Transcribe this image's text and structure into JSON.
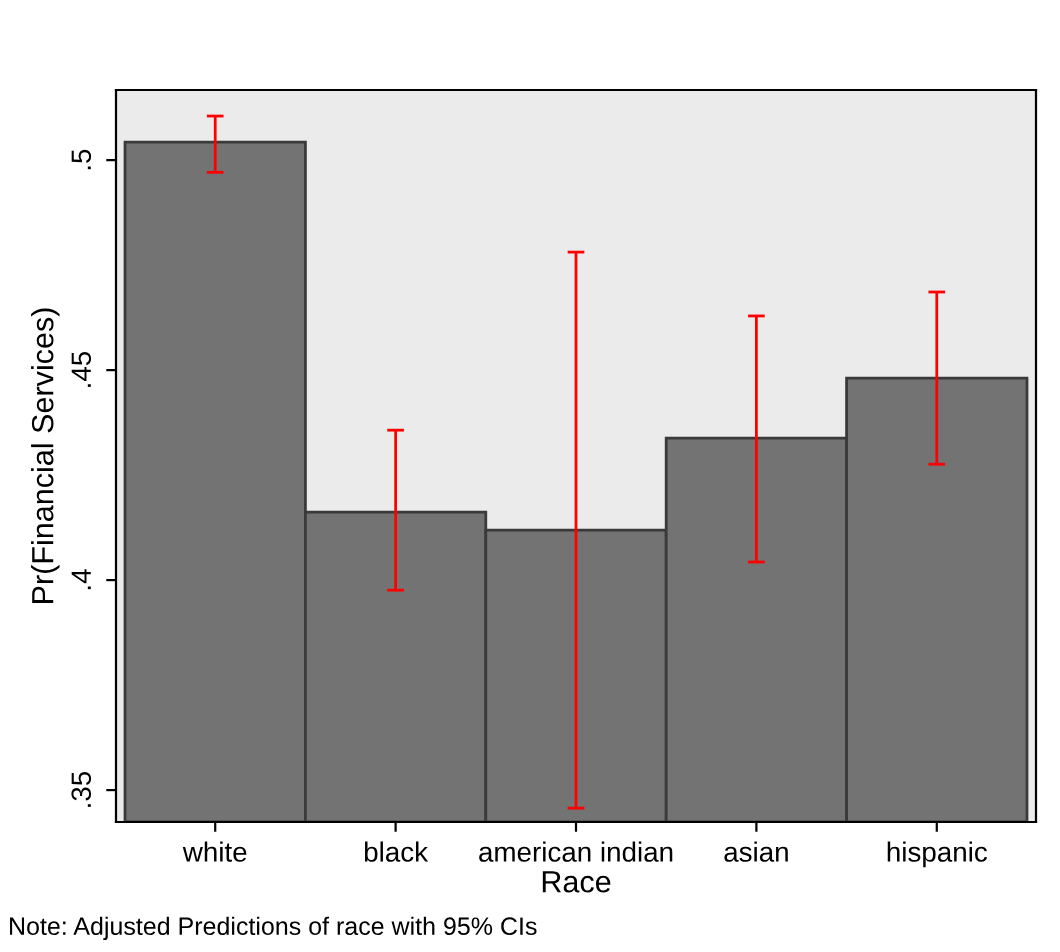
{
  "chart_data": {
    "type": "bar",
    "xlabel": "Race",
    "ylabel": "Pr(Financial Services)",
    "categories": [
      "white",
      "black",
      "american indian",
      "asian",
      "hispanic"
    ],
    "values": [
      0.5043,
      0.4162,
      0.4119,
      0.4338,
      0.4481
    ],
    "errors": [
      [
        0.4971,
        0.5105
      ],
      [
        0.3976,
        0.4357
      ],
      [
        0.3457,
        0.4781
      ],
      [
        0.4043,
        0.4629
      ],
      [
        0.4276,
        0.4686
      ]
    ],
    "color": "#737373",
    "ylim": [
      0.3424,
      0.5167
    ],
    "yticks": [
      {
        "value": 0.35,
        "label": ".35"
      },
      {
        "value": 0.4,
        "label": ".4"
      },
      {
        "value": 0.45,
        "label": ".45"
      },
      {
        "value": 0.5,
        "label": ".5"
      }
    ],
    "grid": false,
    "annotations": [
      "Note: Adjusted Predictions of race with 95% CIs"
    ]
  }
}
